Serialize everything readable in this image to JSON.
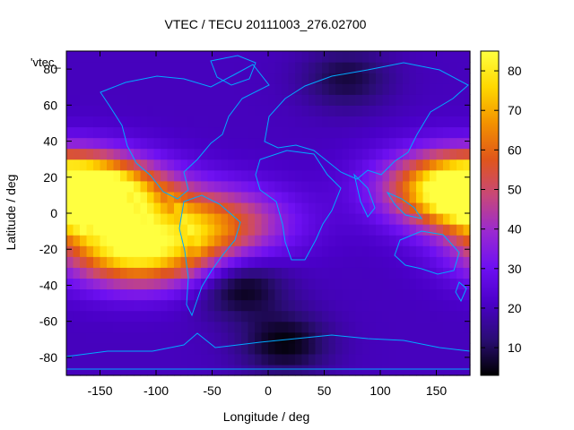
{
  "chart_data": {
    "type": "heatmap",
    "title": "VTEC / TECU 20111003_276.02700",
    "xlabel": "Longitude / deg",
    "ylabel": "Latitude / deg",
    "key_label": "'vtec_",
    "xlim": [
      -180,
      180
    ],
    "ylim": [
      -90,
      90
    ],
    "x_ticks": [
      -150,
      -100,
      -50,
      0,
      50,
      100,
      150
    ],
    "y_ticks": [
      -80,
      -60,
      -40,
      -20,
      0,
      20,
      40,
      60,
      80
    ],
    "colorbar": {
      "range": [
        3,
        85
      ],
      "ticks": [
        10,
        20,
        30,
        40,
        50,
        60,
        70,
        80
      ],
      "palette": [
        "#000000",
        "#2a0d74",
        "#4a00c8",
        "#6e10f2",
        "#9a2ad0",
        "#c84878",
        "#e0561a",
        "#f39200",
        "#ffd800",
        "#ffff40"
      ]
    },
    "grid_step_deg": 6,
    "features": [
      {
        "name": "equatorial anomaly crest (east Pacific)",
        "lon": -150,
        "lat": 8,
        "value": 82
      },
      {
        "name": "southern crest (South Pacific)",
        "lon": -115,
        "lat": -20,
        "value": 84
      },
      {
        "name": "west Pacific enhancement",
        "lon": 170,
        "lat": 15,
        "value": 78
      },
      {
        "name": "South Atlantic enhancement",
        "lon": -45,
        "lat": -5,
        "value": 55
      },
      {
        "name": "South Atlantic depletion",
        "lon": -25,
        "lat": -40,
        "value": 3
      },
      {
        "name": "South Indian Ocean depletion",
        "lon": 15,
        "lat": -72,
        "value": 4
      },
      {
        "name": "northern Eurasia depletion",
        "lon": 70,
        "lat": 75,
        "value": 8
      }
    ],
    "background_value": 20,
    "overlay": "coastlines"
  }
}
